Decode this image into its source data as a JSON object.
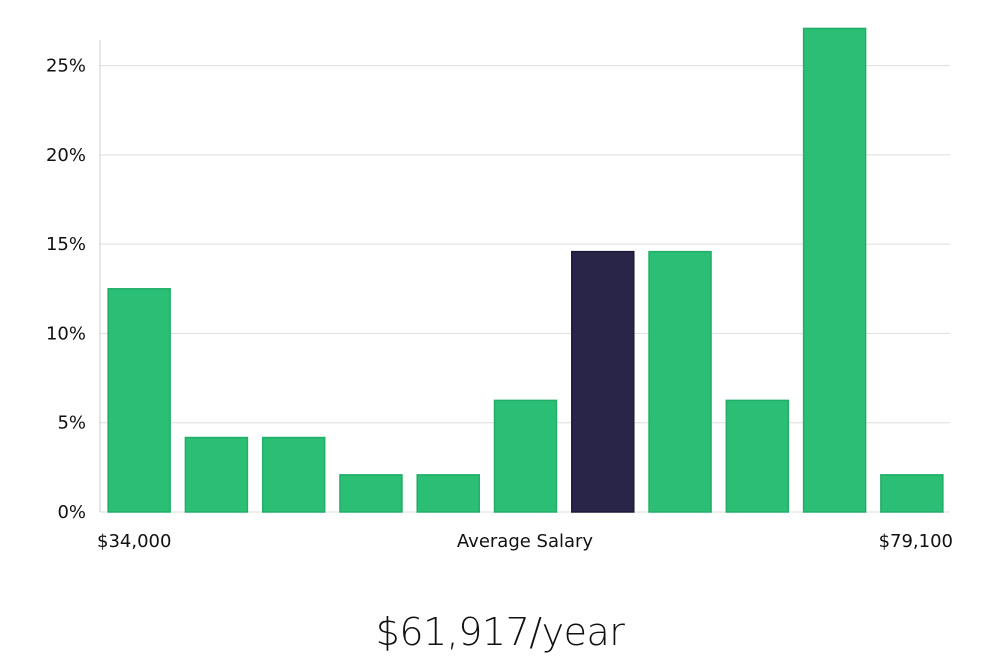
{
  "chart_data": {
    "type": "bar",
    "categories": [
      "",
      "",
      "",
      "",
      "",
      "",
      "",
      "",
      "",
      "",
      ""
    ],
    "values": [
      12.5,
      4.17,
      4.17,
      2.08,
      2.08,
      6.25,
      14.58,
      14.58,
      6.25,
      27.08,
      2.08
    ],
    "highlight_index": 6,
    "ylim": [
      0,
      28
    ],
    "yticks": [
      0,
      5,
      10,
      15,
      20,
      25
    ],
    "ytick_format": "%",
    "x_range_labels": {
      "min": "$34,000",
      "center": "Average Salary",
      "max": "$79,100"
    },
    "grid": true,
    "legend": "none"
  },
  "colors": {
    "bar": "#2bbf76",
    "bar_edge": "#22ad68",
    "highlight": "#292548",
    "grid": "#dddddd",
    "axis": "#cccccc"
  },
  "summary": {
    "salary_text": "$61,917/year"
  }
}
